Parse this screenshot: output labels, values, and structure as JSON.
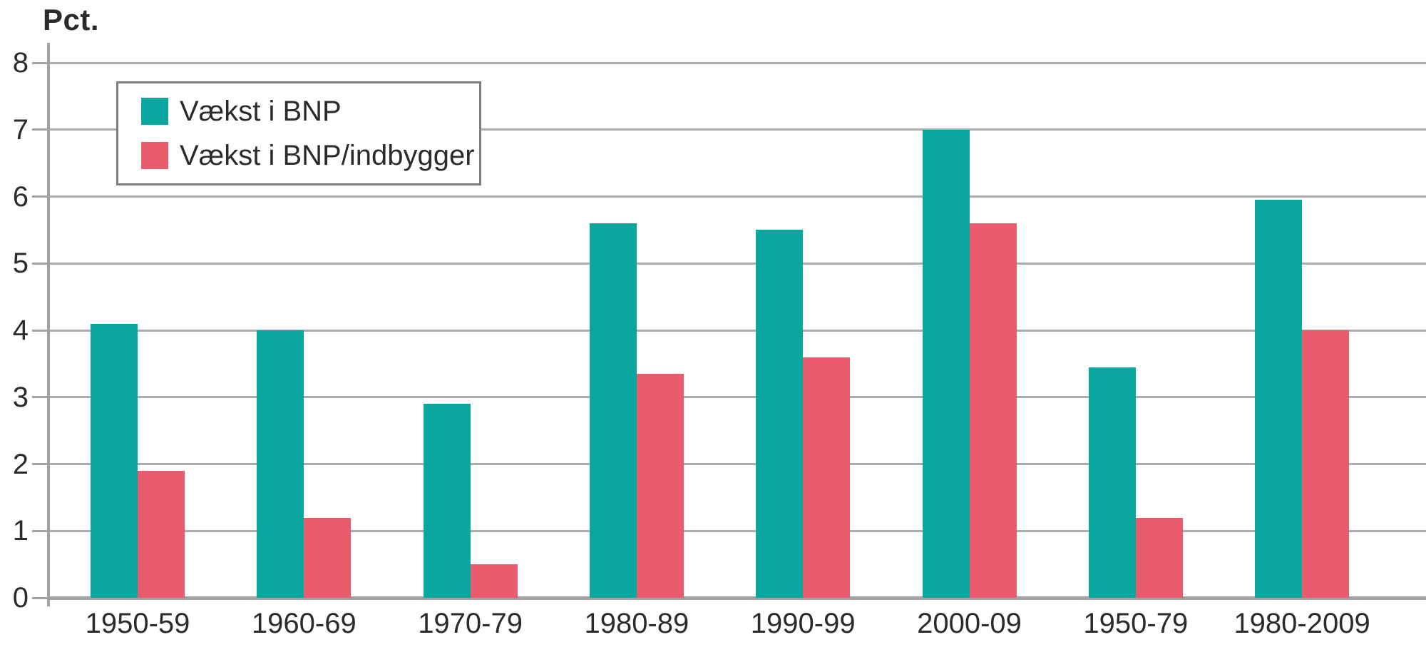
{
  "y_axis_title": "Pct.",
  "chart_data": {
    "type": "bar",
    "title": "",
    "xlabel": "",
    "ylabel": "Pct.",
    "categories": [
      "1950-59",
      "1960-69",
      "1970-79",
      "1980-89",
      "1990-99",
      "2000-09",
      "1950-79",
      "1980-2009"
    ],
    "series": [
      {
        "name": "Vækst i BNP",
        "color": "#0aa79f",
        "values": [
          4.1,
          4.0,
          2.9,
          5.6,
          5.5,
          7.0,
          3.45,
          5.95
        ]
      },
      {
        "name": "Vækst i BNP/indbygger",
        "color": "#e95c6d",
        "values": [
          1.9,
          1.2,
          0.5,
          3.35,
          3.6,
          5.6,
          1.2,
          4.0
        ]
      }
    ],
    "ylim": [
      0,
      8
    ],
    "yticks": [
      0,
      1,
      2,
      3,
      4,
      5,
      6,
      7,
      8
    ],
    "grid": true,
    "legend_position": "upper-left"
  },
  "colors": {
    "series_bnp": "#0aa79f",
    "series_bnp_per_capita": "#e95c6d",
    "gridline": "#abacae",
    "axis": "#a0a1a3",
    "text": "#2d2b2a",
    "legend_border": "#7d7e80",
    "background": "#ffffff"
  }
}
